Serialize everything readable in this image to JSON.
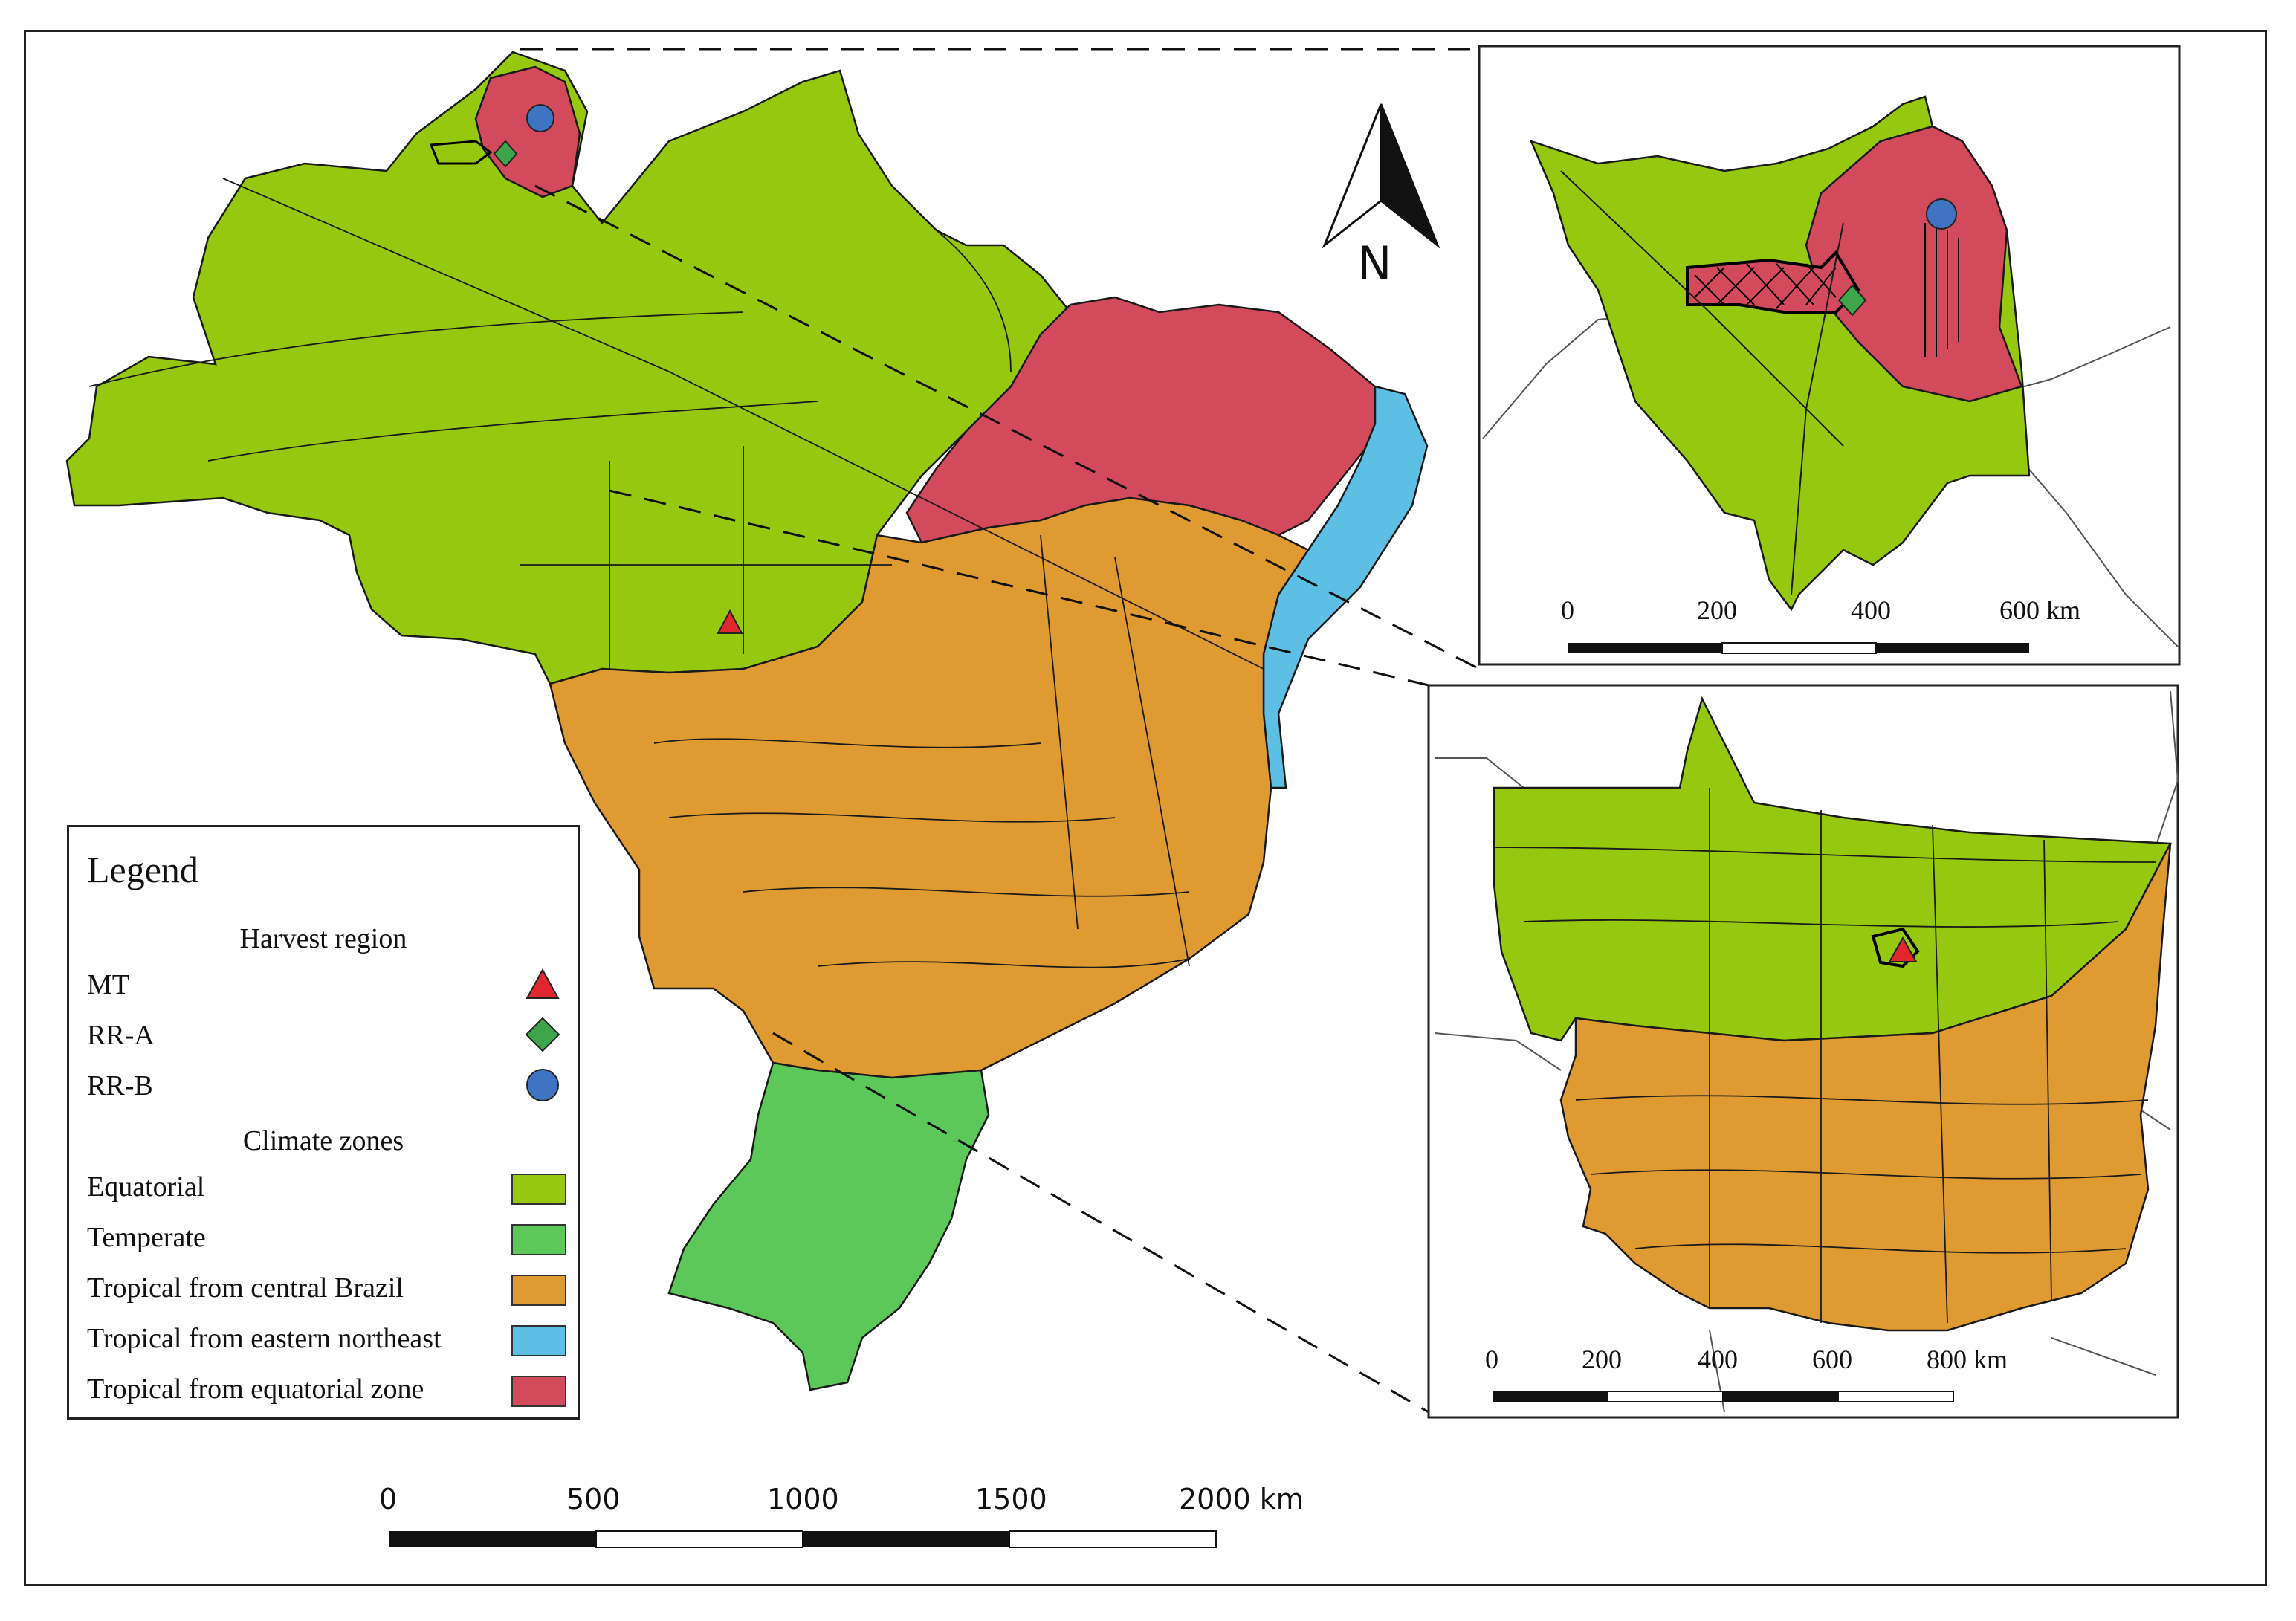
{
  "legend": {
    "title": "Legend",
    "harvest_heading": "Harvest region",
    "harvest_items": [
      {
        "label": "MT",
        "symbol": "triangle",
        "color": "#e0262f"
      },
      {
        "label": "RR-A",
        "symbol": "diamond",
        "color": "#3fa54a"
      },
      {
        "label": "RR-B",
        "symbol": "circle",
        "color": "#3f74c3"
      }
    ],
    "climate_heading": "Climate zones",
    "climate_items": [
      {
        "label": "Equatorial",
        "color": "#96c80f"
      },
      {
        "label": "Temperate",
        "color": "#5dc85a"
      },
      {
        "label": "Tropical from central Brazil",
        "color": "#e09a32"
      },
      {
        "label": "Tropical from eastern northeast",
        "color": "#5dbfe4"
      },
      {
        "label": "Tropical from equatorial zone",
        "color": "#d24a5b"
      }
    ]
  },
  "north_arrow": {
    "label": "N"
  },
  "main_scale": {
    "labels": [
      "0",
      "500",
      "1000",
      "1500",
      "2000 km"
    ]
  },
  "inset_top_scale": {
    "labels": [
      "0",
      "200",
      "400",
      "600 km"
    ]
  },
  "inset_bottom_scale": {
    "labels": [
      "0",
      "200",
      "400",
      "600",
      "800 km"
    ]
  },
  "colors": {
    "equatorial": "#96c80f",
    "temperate": "#5dc85a",
    "central": "#e09a32",
    "eastern": "#5dbfe4",
    "equatorial_zone": "#d24a5b"
  }
}
